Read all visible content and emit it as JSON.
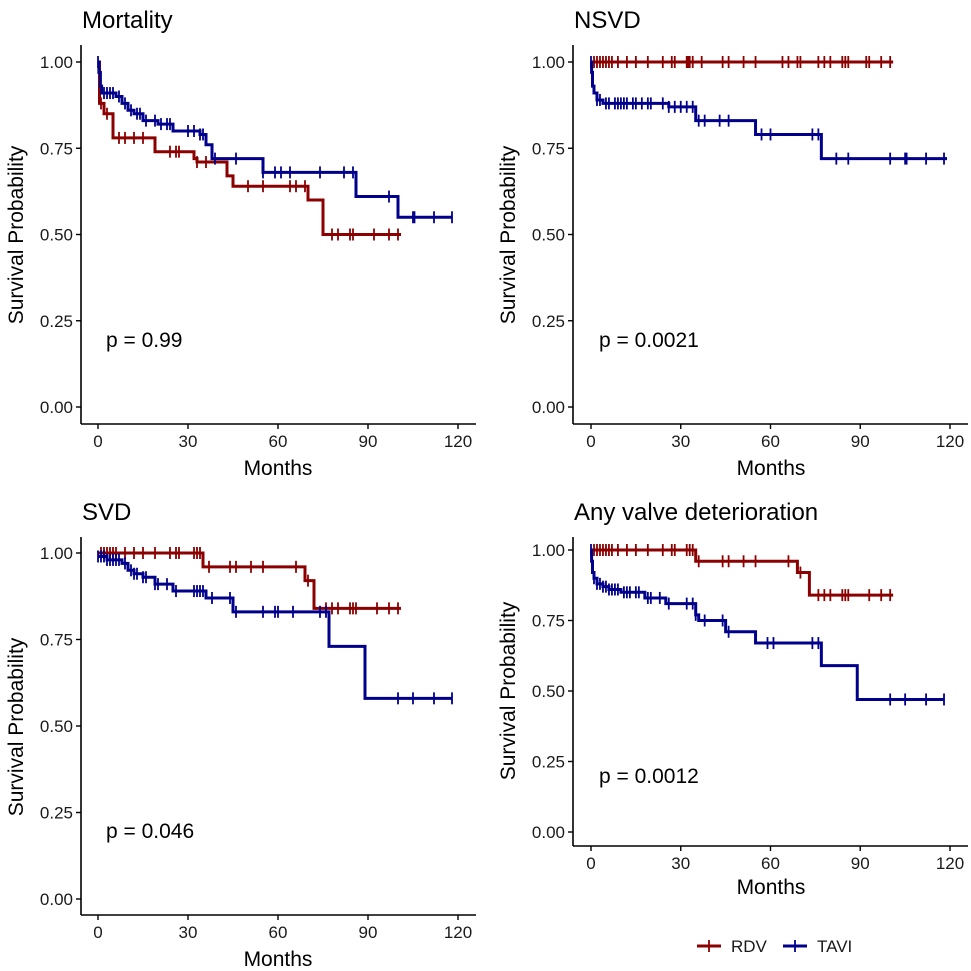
{
  "legend": {
    "items": [
      {
        "label": "RDV",
        "color": "#8B0000"
      },
      {
        "label": "TAVI",
        "color": "#00008B"
      }
    ]
  },
  "chart_data": [
    {
      "type": "line",
      "title": "Mortality",
      "xlabel": "Months",
      "ylabel": "Survival Probability",
      "xlim": [
        0,
        120
      ],
      "ylim": [
        0,
        1
      ],
      "xticks": [
        "0",
        "30",
        "60",
        "90",
        "120"
      ],
      "yticks": [
        "0.00",
        "0.25",
        "0.50",
        "0.75",
        "1.00"
      ],
      "annotation": "p = 0.99",
      "series": [
        {
          "name": "RDV",
          "steps": [
            [
              0,
              1.0
            ],
            [
              0.5,
              0.88
            ],
            [
              2,
              0.85
            ],
            [
              5,
              0.78
            ],
            [
              19,
              0.74
            ],
            [
              32,
              0.72
            ],
            [
              33,
              0.71
            ],
            [
              43,
              0.67
            ],
            [
              45,
              0.64
            ],
            [
              70,
              0.6
            ],
            [
              75,
              0.5
            ]
          ],
          "end": 101,
          "censor": [
            1,
            3,
            7,
            9,
            12,
            15,
            24,
            26,
            27,
            33,
            36,
            50,
            55,
            64,
            66,
            69,
            78,
            80,
            84,
            85,
            92,
            97,
            100
          ]
        },
        {
          "name": "TAVI",
          "steps": [
            [
              0,
              1.0
            ],
            [
              0.3,
              0.97
            ],
            [
              0.8,
              0.93
            ],
            [
              1.2,
              0.91
            ],
            [
              6,
              0.9
            ],
            [
              8,
              0.88
            ],
            [
              10,
              0.86
            ],
            [
              12,
              0.85
            ],
            [
              15,
              0.83
            ],
            [
              20,
              0.82
            ],
            [
              25,
              0.8
            ],
            [
              34,
              0.79
            ],
            [
              36,
              0.76
            ],
            [
              38,
              0.72
            ],
            [
              55,
              0.68
            ],
            [
              86,
              0.61
            ],
            [
              100,
              0.55
            ]
          ],
          "end": 118,
          "censor": [
            0,
            2,
            3,
            4,
            5,
            7,
            9,
            11,
            13,
            14,
            16,
            19,
            21,
            23,
            24,
            30,
            32,
            34,
            35,
            39,
            46,
            55,
            59,
            61,
            64,
            74,
            82,
            85,
            97,
            105,
            105.5,
            112,
            118
          ]
        }
      ]
    },
    {
      "type": "line",
      "title": "NSVD",
      "xlabel": "Months",
      "ylabel": "Survival Probability",
      "xlim": [
        0,
        120
      ],
      "ylim": [
        0,
        1
      ],
      "xticks": [
        "0",
        "30",
        "60",
        "90",
        "120"
      ],
      "yticks": [
        "0.00",
        "0.25",
        "0.50",
        "0.75",
        "1.00"
      ],
      "annotation": "p = 0.0021",
      "series": [
        {
          "name": "RDV",
          "steps": [
            [
              0,
              1.0
            ]
          ],
          "end": 101,
          "censor": [
            1,
            2,
            3,
            4,
            5,
            6,
            7,
            9,
            12,
            15,
            19,
            24,
            27,
            28,
            32,
            32.5,
            33,
            34,
            37,
            44,
            46,
            51,
            55,
            64,
            66,
            69,
            70,
            76,
            78,
            80,
            84,
            85,
            86,
            92,
            93,
            97,
            100
          ]
        },
        {
          "name": "TAVI",
          "steps": [
            [
              0,
              1.0
            ],
            [
              0.2,
              0.97
            ],
            [
              0.5,
              0.93
            ],
            [
              1,
              0.91
            ],
            [
              2,
              0.89
            ],
            [
              4,
              0.88
            ],
            [
              26,
              0.87
            ],
            [
              35,
              0.83
            ],
            [
              55,
              0.79
            ],
            [
              77,
              0.72
            ]
          ],
          "end": 119,
          "censor": [
            0,
            2,
            3,
            5,
            6,
            8,
            9,
            10,
            11,
            12,
            14,
            15,
            17,
            19,
            20,
            24,
            26,
            28,
            30,
            32,
            34,
            36,
            38,
            43,
            46,
            57,
            60,
            74,
            76,
            82,
            86,
            100,
            105,
            105.5,
            112,
            118
          ]
        }
      ]
    },
    {
      "type": "line",
      "title": "SVD",
      "xlabel": "Months",
      "ylabel": "Survival Probability",
      "xlim": [
        0,
        120
      ],
      "ylim": [
        0,
        1
      ],
      "xticks": [
        "0",
        "30",
        "60",
        "90",
        "120"
      ],
      "yticks": [
        "0.00",
        "0.25",
        "0.50",
        "0.75",
        "1.00"
      ],
      "annotation": "p = 0.046",
      "series": [
        {
          "name": "RDV",
          "steps": [
            [
              0,
              1.0
            ],
            [
              35,
              0.96
            ],
            [
              69,
              0.92
            ],
            [
              72,
              0.84
            ]
          ],
          "end": 101,
          "censor": [
            1,
            2,
            3,
            4,
            5,
            6,
            9,
            12,
            15,
            19,
            24,
            26,
            27,
            32,
            33,
            34,
            37,
            44,
            46,
            51,
            55,
            66,
            70,
            76,
            78,
            80,
            84,
            85,
            86,
            93,
            97,
            100
          ]
        },
        {
          "name": "TAVI",
          "steps": [
            [
              0,
              0.99
            ],
            [
              3,
              0.98
            ],
            [
              8,
              0.97
            ],
            [
              10,
              0.95
            ],
            [
              12,
              0.94
            ],
            [
              15,
              0.93
            ],
            [
              19,
              0.91
            ],
            [
              25,
              0.89
            ],
            [
              36,
              0.87
            ],
            [
              45,
              0.83
            ],
            [
              77,
              0.73
            ],
            [
              89,
              0.58
            ]
          ],
          "end": 118,
          "censor": [
            0,
            1,
            2,
            3,
            4,
            5,
            6,
            7,
            9,
            11,
            12,
            13,
            15,
            16,
            19,
            20,
            23,
            26,
            32,
            33,
            34,
            35,
            38,
            44,
            46,
            55,
            59,
            60,
            65,
            74,
            76,
            100,
            105,
            112,
            118
          ]
        }
      ]
    },
    {
      "type": "line",
      "title": "Any valve deterioration",
      "xlabel": "Months",
      "ylabel": "Survival Probability",
      "xlim": [
        0,
        120
      ],
      "ylim": [
        0,
        1
      ],
      "xticks": [
        "0",
        "30",
        "60",
        "90",
        "120"
      ],
      "yticks": [
        "0.00",
        "0.25",
        "0.50",
        "0.75",
        "1.00"
      ],
      "annotation": "p = 0.0012",
      "series": [
        {
          "name": "RDV",
          "steps": [
            [
              0,
              1.0
            ],
            [
              35,
              0.96
            ],
            [
              69,
              0.92
            ],
            [
              73,
              0.84
            ]
          ],
          "end": 101,
          "censor": [
            1,
            2,
            3,
            4,
            5,
            6,
            7,
            9,
            12,
            15,
            19,
            24,
            27,
            28,
            32,
            33,
            34,
            36,
            44,
            46,
            51,
            55,
            66,
            70,
            76,
            78,
            80,
            84,
            85,
            86,
            93,
            97,
            100
          ]
        },
        {
          "name": "TAVI",
          "steps": [
            [
              0,
              1.0
            ],
            [
              0.2,
              0.96
            ],
            [
              0.5,
              0.92
            ],
            [
              1,
              0.9
            ],
            [
              2,
              0.88
            ],
            [
              4,
              0.87
            ],
            [
              6,
              0.86
            ],
            [
              10,
              0.85
            ],
            [
              18,
              0.83
            ],
            [
              25,
              0.81
            ],
            [
              35,
              0.77
            ],
            [
              36,
              0.75
            ],
            [
              45,
              0.71
            ],
            [
              55,
              0.67
            ],
            [
              77,
              0.59
            ],
            [
              89,
              0.47
            ]
          ],
          "end": 118,
          "censor": [
            0,
            1,
            2,
            3,
            4,
            5,
            6,
            7,
            8,
            9,
            11,
            12,
            13,
            15,
            16,
            19,
            20,
            23,
            26,
            32,
            34,
            35,
            38,
            44,
            46,
            59,
            61,
            74,
            76,
            100,
            105,
            112,
            118
          ]
        }
      ]
    }
  ]
}
